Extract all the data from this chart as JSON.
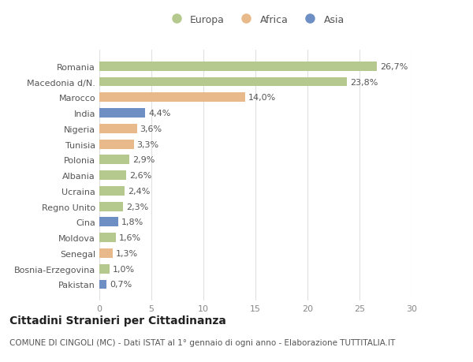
{
  "countries": [
    "Romania",
    "Macedonia d/N.",
    "Marocco",
    "India",
    "Nigeria",
    "Tunisia",
    "Polonia",
    "Albania",
    "Ucraina",
    "Regno Unito",
    "Cina",
    "Moldova",
    "Senegal",
    "Bosnia-Erzegovina",
    "Pakistan"
  ],
  "values": [
    26.7,
    23.8,
    14.0,
    4.4,
    3.6,
    3.3,
    2.9,
    2.6,
    2.4,
    2.3,
    1.8,
    1.6,
    1.3,
    1.0,
    0.7
  ],
  "labels": [
    "26,7%",
    "23,8%",
    "14,0%",
    "4,4%",
    "3,6%",
    "3,3%",
    "2,9%",
    "2,6%",
    "2,4%",
    "2,3%",
    "1,8%",
    "1,6%",
    "1,3%",
    "1,0%",
    "0,7%"
  ],
  "continents": [
    "Europa",
    "Europa",
    "Africa",
    "Asia",
    "Africa",
    "Africa",
    "Europa",
    "Europa",
    "Europa",
    "Europa",
    "Asia",
    "Europa",
    "Africa",
    "Europa",
    "Asia"
  ],
  "colors": {
    "Europa": "#b5c98e",
    "Africa": "#e8b98a",
    "Asia": "#6e8fc4"
  },
  "legend_labels": [
    "Europa",
    "Africa",
    "Asia"
  ],
  "title": "Cittadini Stranieri per Cittadinanza",
  "subtitle": "COMUNE DI CINGOLI (MC) - Dati ISTAT al 1° gennaio di ogni anno - Elaborazione TUTTITALIA.IT",
  "xlim": [
    0,
    30
  ],
  "xticks": [
    0,
    5,
    10,
    15,
    20,
    25,
    30
  ],
  "background_color": "#ffffff",
  "grid_color": "#e0e0e0",
  "bar_height": 0.6,
  "title_fontsize": 10,
  "subtitle_fontsize": 7.5,
  "tick_fontsize": 8,
  "label_fontsize": 8,
  "legend_fontsize": 9
}
